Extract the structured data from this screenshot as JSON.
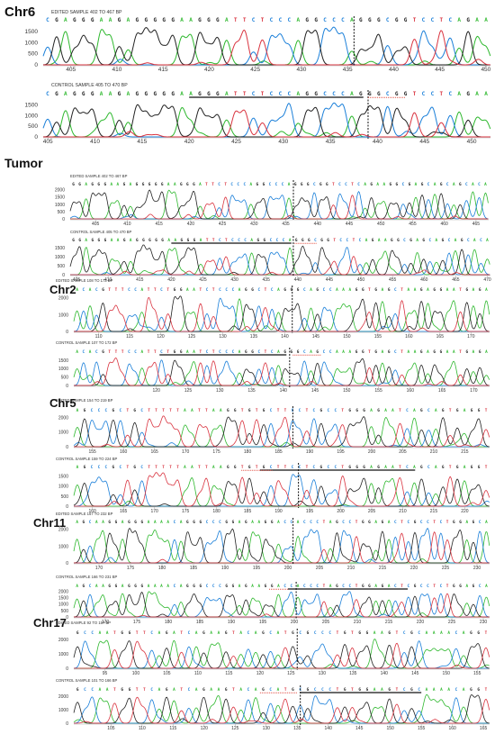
{
  "colors": {
    "A": "#2eb82e",
    "C": "#1a7fd9",
    "G": "#222222",
    "T": "#d9333f",
    "cut": "#111111",
    "underline": "#111111",
    "pam": "#e0463a",
    "axis": "#aaaaaa"
  },
  "chart_data": [
    {
      "type": "line",
      "group": "Chr6",
      "title": "EDITED SAMPLE 402 TO 467 BP",
      "sequence": "CGAGGGAAGAGGGGGAAGGGATTCTCCCAGGCCCAGGGCGGTCCTCAGAA",
      "yticks": [
        1500,
        1000,
        500,
        0
      ],
      "ylim": [
        0,
        1700
      ],
      "xticks": [
        405,
        410,
        415,
        420,
        425,
        430,
        435,
        440,
        445,
        450
      ],
      "xlim": [
        402,
        450.5
      ],
      "cut_x": 435.7,
      "underline": null,
      "pam": null
    },
    {
      "type": "line",
      "group": "",
      "title": "CONTROL SAMPLE 405 TO 470 BP",
      "sequence": "CGAGGGAAGAGGGGGAAGGGATTCTCCCAGGCCCAGGGCGGTCCTCAGAA",
      "yticks": [
        1500,
        1000,
        500,
        0
      ],
      "ylim": [
        0,
        1700
      ],
      "xticks": [
        405,
        410,
        415,
        420,
        425,
        430,
        435,
        440,
        445,
        450
      ],
      "xlim": [
        404.5,
        452
      ],
      "cut_x": 439,
      "underline": [
        420,
        438.5
      ],
      "pam": [
        439,
        443
      ]
    },
    {
      "type": "line",
      "group": "Tumor",
      "title": "EDITED SAMPLE 402 TO 467 BP",
      "sequence": "GGAGGGAAGAGGGGGAAGGGATTCTCCCAGGCCCAGGGCGGTCCTCAGAAGGCGAGCAGCAGCACA",
      "yticks": [
        2000,
        1500,
        1000,
        500,
        0
      ],
      "ylim": [
        0,
        2100
      ],
      "xticks": [
        405,
        410,
        415,
        420,
        425,
        430,
        435,
        440,
        445,
        450,
        455,
        460,
        465
      ],
      "xlim": [
        401,
        467
      ],
      "cut_x": 436.2,
      "underline": null,
      "pam": null
    },
    {
      "type": "line",
      "group": "",
      "title": "CONTROL SAMPLE 405 TO 470 BP",
      "sequence": "GGAGGGAAGAGGGGGAAGGGATTCTCCCAGGCCCAGGGCGGTCCTCAGAAGGCGAGCAGCAGCACA",
      "yticks": [
        1500,
        1000,
        500,
        0
      ],
      "ylim": [
        0,
        1700
      ],
      "xticks": [
        405,
        410,
        415,
        420,
        425,
        430,
        435,
        440,
        445,
        450,
        455,
        460,
        465,
        470
      ],
      "xlim": [
        404,
        470.5
      ],
      "cut_x": 439.3,
      "underline": [
        420,
        439
      ],
      "pam": [
        439.5,
        443
      ]
    },
    {
      "type": "line",
      "group": "Chr2",
      "title": "EDITED SAMPLE 108 TO 173 BP",
      "sequence": "ACACGTTTCCATTCTGGAATCTCCCAGGCTCAGGGCAGCCAAAGGTGAGCTAAGAGGAATGAGA",
      "yticks": [
        2000,
        1000,
        0
      ],
      "ylim": [
        0,
        2200
      ],
      "xticks": [
        110,
        115,
        120,
        125,
        130,
        135,
        140,
        145,
        150,
        155,
        160,
        165,
        170
      ],
      "xlim": [
        106,
        173
      ],
      "cut_x": 141.2,
      "underline": null,
      "pam": null
    },
    {
      "type": "line",
      "group": "",
      "title": "CONTROL SAMPLE 107 TO 172 BP",
      "sequence": "ACACGTTTCCATTCTGGAATCTCCCAGGCTCAGGGCAGCCAAAGGTGAGCTAAGAGGAATGAGA",
      "yticks": [
        1500,
        1000,
        500,
        0
      ],
      "ylim": [
        0,
        1700
      ],
      "xticks": [
        120,
        125,
        130,
        135,
        140,
        145,
        150,
        155,
        160,
        165,
        170
      ],
      "xlim": [
        107,
        172.5
      ],
      "cut_x": 141,
      "underline": [
        120.5,
        140.5
      ],
      "pam": [
        141.5,
        146
      ]
    },
    {
      "type": "line",
      "group": "Chr5",
      "title": "EDITED SAMPLE 154 TO 219 BP",
      "sequence": "AGCCCGCTGCTTTTTAATTAAGGTGTGCTTCCTCGCCTGGGAGAATCAGCAGTGAGGT",
      "yticks": [
        2000,
        1000,
        0
      ],
      "ylim": [
        0,
        2200
      ],
      "xticks": [
        155,
        160,
        165,
        170,
        175,
        180,
        185,
        190,
        195,
        200,
        205,
        210,
        215
      ],
      "xlim": [
        152,
        219
      ],
      "cut_x": 187.3,
      "underline": null,
      "pam": null
    },
    {
      "type": "line",
      "group": "",
      "title": "CONTROL SAMPLE 159 TO 224 BP",
      "sequence": "AGCCCGCTGCTTTTTAATTAAGGTGTGCTTCCTCGCCTGGGAGAATCAGCAGTGAGGT",
      "yticks": [
        1500,
        1000,
        500,
        0
      ],
      "ylim": [
        0,
        1700
      ],
      "xticks": [
        160,
        165,
        170,
        175,
        180,
        185,
        190,
        195,
        200,
        205,
        210,
        215,
        220
      ],
      "xlim": [
        157,
        224
      ],
      "cut_x": 193.2,
      "underline": [
        187,
        212
      ],
      "pam": [
        184,
        189
      ]
    },
    {
      "type": "line",
      "group": "Chr11",
      "title": "EDITED SAMPLE 167 TO 232 BP",
      "sequence": "AGCAAGGAGGGAAAACAGGGCCCGGAGAAGGACCACCCTAGCCTGGAGACTCGCCTCTGGAGCA",
      "yticks": [
        2000,
        1000,
        0
      ],
      "ylim": [
        0,
        2200
      ],
      "xticks": [
        170,
        175,
        180,
        185,
        190,
        195,
        200,
        205,
        210,
        215,
        220,
        225,
        230
      ],
      "xlim": [
        166,
        232
      ],
      "cut_x": 200.8,
      "underline": null,
      "pam": null
    },
    {
      "type": "line",
      "group": "",
      "title": "CONTROL SAMPLE 166 TO 231 BP",
      "sequence": "AGCAAGGAGGGAAAACAGGGCCCGGAGAAGGACCACCCTAGCCTGGAGACTCGCCTCTGGAGCA",
      "yticks": [
        2000,
        1500,
        1000,
        500,
        0
      ],
      "ylim": [
        0,
        2100
      ],
      "xticks": [
        170,
        175,
        180,
        185,
        190,
        195,
        200,
        205,
        210,
        215,
        220,
        225,
        230
      ],
      "xlim": [
        165,
        231
      ],
      "cut_x": 200.3,
      "underline": [
        199,
        218
      ],
      "pam": [
        196,
        199
      ]
    },
    {
      "type": "line",
      "group": "Chr17",
      "title": "EDITED SAMPLE 92 TO 157 BP",
      "sequence": "GCCAATGGTTCAGATCAGAAGTACAGCATGCGCCCTGTGGAAGTCGCAAAACAGGT",
      "yticks": [
        2000,
        1000,
        0
      ],
      "ylim": [
        0,
        2200
      ],
      "xticks": [
        95,
        100,
        105,
        110,
        115,
        120,
        125,
        130,
        135,
        140,
        145,
        150,
        155
      ],
      "xlim": [
        90,
        157
      ],
      "cut_x": 126,
      "underline": null,
      "pam": null
    },
    {
      "type": "line",
      "group": "",
      "title": "CONTROL SAMPLE 101 TO 166 BP",
      "sequence": "GCCAATGGTTCAGATCAGAAGTACAGCATGCGCCCTGTGGAAGTCGCAAAACAGGT",
      "yticks": [
        2000,
        1000,
        0
      ],
      "ylim": [
        0,
        2200
      ],
      "xticks": [
        105,
        110,
        115,
        120,
        125,
        130,
        135,
        140,
        145,
        150,
        155,
        160,
        165
      ],
      "xlim": [
        99,
        166
      ],
      "cut_x": 135.5,
      "underline": [
        135.5,
        155
      ],
      "pam": [
        129,
        135
      ]
    }
  ]
}
